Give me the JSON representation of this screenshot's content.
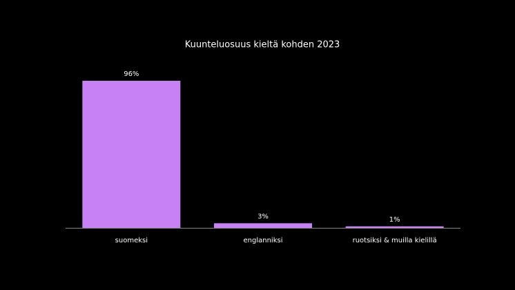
{
  "chart_data": {
    "type": "bar",
    "title": "Kuunteluosuus kieltä kohden 2023",
    "categories": [
      "suomeksi",
      "englanniksi",
      "ruotsiksi & muilla kielillä"
    ],
    "values": [
      96,
      3,
      1
    ],
    "value_labels": [
      "96%",
      "3%",
      "1%"
    ],
    "color": "#c880f5"
  }
}
